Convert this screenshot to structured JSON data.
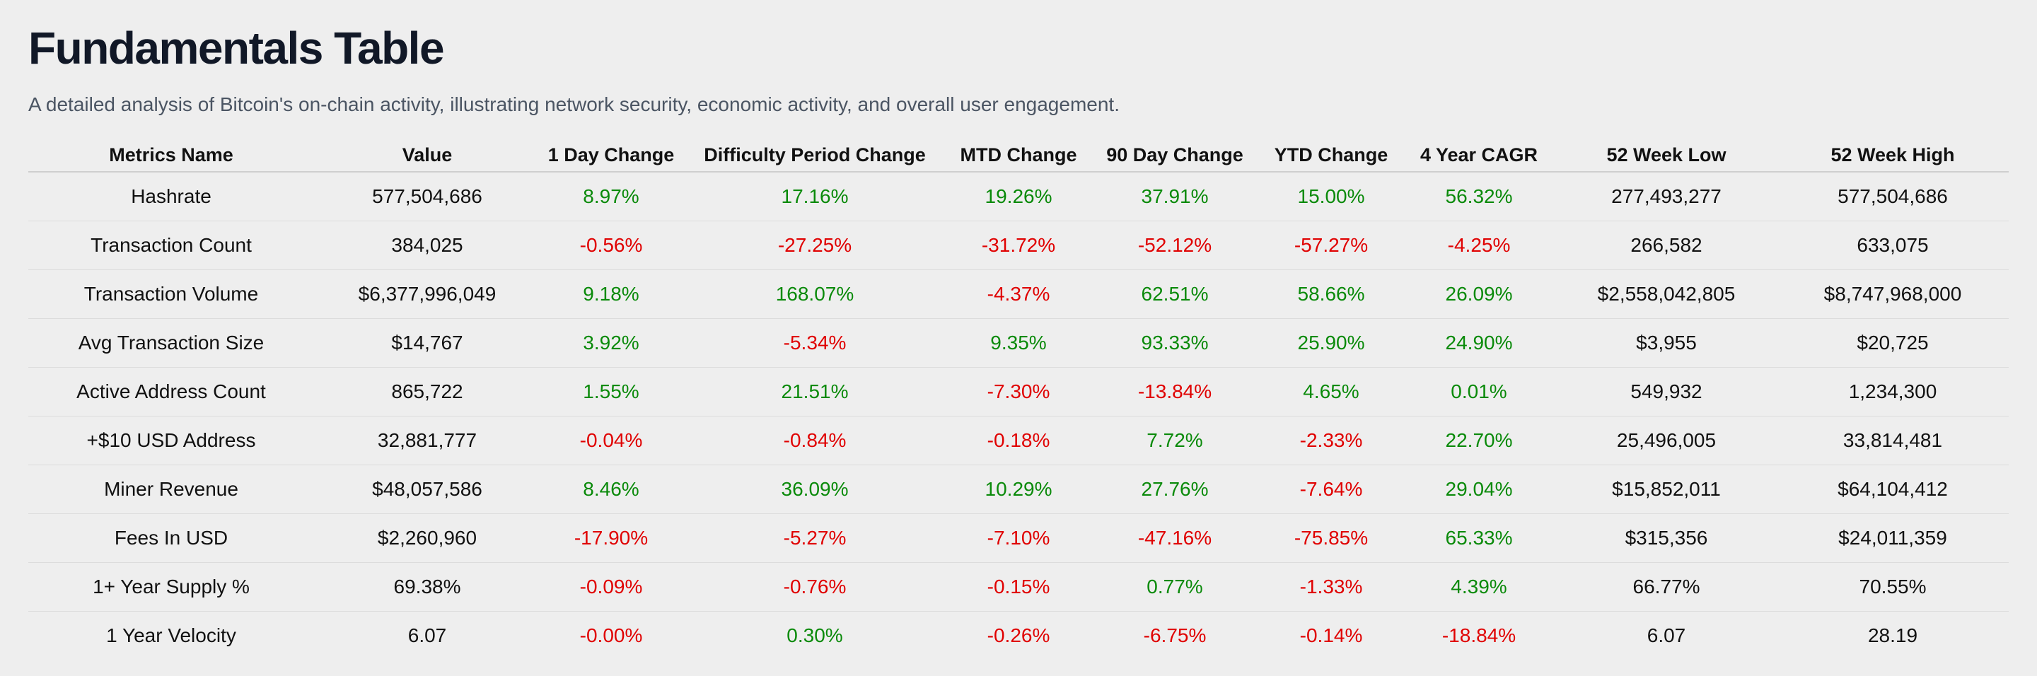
{
  "title": "Fundamentals Table",
  "subtitle": "A detailed analysis of Bitcoin's on-chain activity, illustrating network security, economic activity, and overall user engagement.",
  "colors": {
    "positive": "#0a8a0a",
    "negative": "#e00000",
    "background": "#eeeeee"
  },
  "columns": [
    "Metrics Name",
    "Value",
    "1 Day Change",
    "Difficulty Period Change",
    "MTD Change",
    "90 Day Change",
    "YTD Change",
    "4 Year CAGR",
    "52 Week Low",
    "52 Week High"
  ],
  "rows": [
    [
      "Hashrate",
      "577,504,686",
      "8.97%",
      "17.16%",
      "19.26%",
      "37.91%",
      "15.00%",
      "56.32%",
      "277,493,277",
      "577,504,686"
    ],
    [
      "Transaction Count",
      "384,025",
      "-0.56%",
      "-27.25%",
      "-31.72%",
      "-52.12%",
      "-57.27%",
      "-4.25%",
      "266,582",
      "633,075"
    ],
    [
      "Transaction Volume",
      "$6,377,996,049",
      "9.18%",
      "168.07%",
      "-4.37%",
      "62.51%",
      "58.66%",
      "26.09%",
      "$2,558,042,805",
      "$8,747,968,000"
    ],
    [
      "Avg Transaction Size",
      "$14,767",
      "3.92%",
      "-5.34%",
      "9.35%",
      "93.33%",
      "25.90%",
      "24.90%",
      "$3,955",
      "$20,725"
    ],
    [
      "Active Address Count",
      "865,722",
      "1.55%",
      "21.51%",
      "-7.30%",
      "-13.84%",
      "4.65%",
      "0.01%",
      "549,932",
      "1,234,300"
    ],
    [
      "+$10 USD Address",
      "32,881,777",
      "-0.04%",
      "-0.84%",
      "-0.18%",
      "7.72%",
      "-2.33%",
      "22.70%",
      "25,496,005",
      "33,814,481"
    ],
    [
      "Miner Revenue",
      "$48,057,586",
      "8.46%",
      "36.09%",
      "10.29%",
      "27.76%",
      "-7.64%",
      "29.04%",
      "$15,852,011",
      "$64,104,412"
    ],
    [
      "Fees In USD",
      "$2,260,960",
      "-17.90%",
      "-5.27%",
      "-7.10%",
      "-47.16%",
      "-75.85%",
      "65.33%",
      "$315,356",
      "$24,011,359"
    ],
    [
      "1+ Year Supply %",
      "69.38%",
      "-0.09%",
      "-0.76%",
      "-0.15%",
      "0.77%",
      "-1.33%",
      "4.39%",
      "66.77%",
      "70.55%"
    ],
    [
      "1 Year Velocity",
      "6.07",
      "-0.00%",
      "0.30%",
      "-0.26%",
      "-6.75%",
      "-0.14%",
      "-18.84%",
      "6.07",
      "28.19"
    ]
  ]
}
